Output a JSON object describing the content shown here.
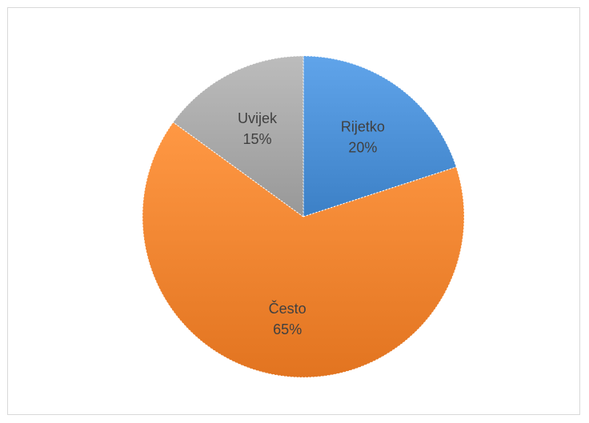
{
  "chart_data": {
    "type": "pie",
    "slices": [
      {
        "label": "Rijetko",
        "value": 20,
        "percent_label": "20%",
        "color": "#4a8ed4"
      },
      {
        "label": "Često",
        "value": 65,
        "percent_label": "65%",
        "color": "#f0822e"
      },
      {
        "label": "Uvijek",
        "value": 15,
        "percent_label": "15%",
        "color": "#a6a6a6"
      }
    ],
    "start_angle_deg": 0,
    "direction": "clockwise",
    "data_labels": "inside"
  }
}
